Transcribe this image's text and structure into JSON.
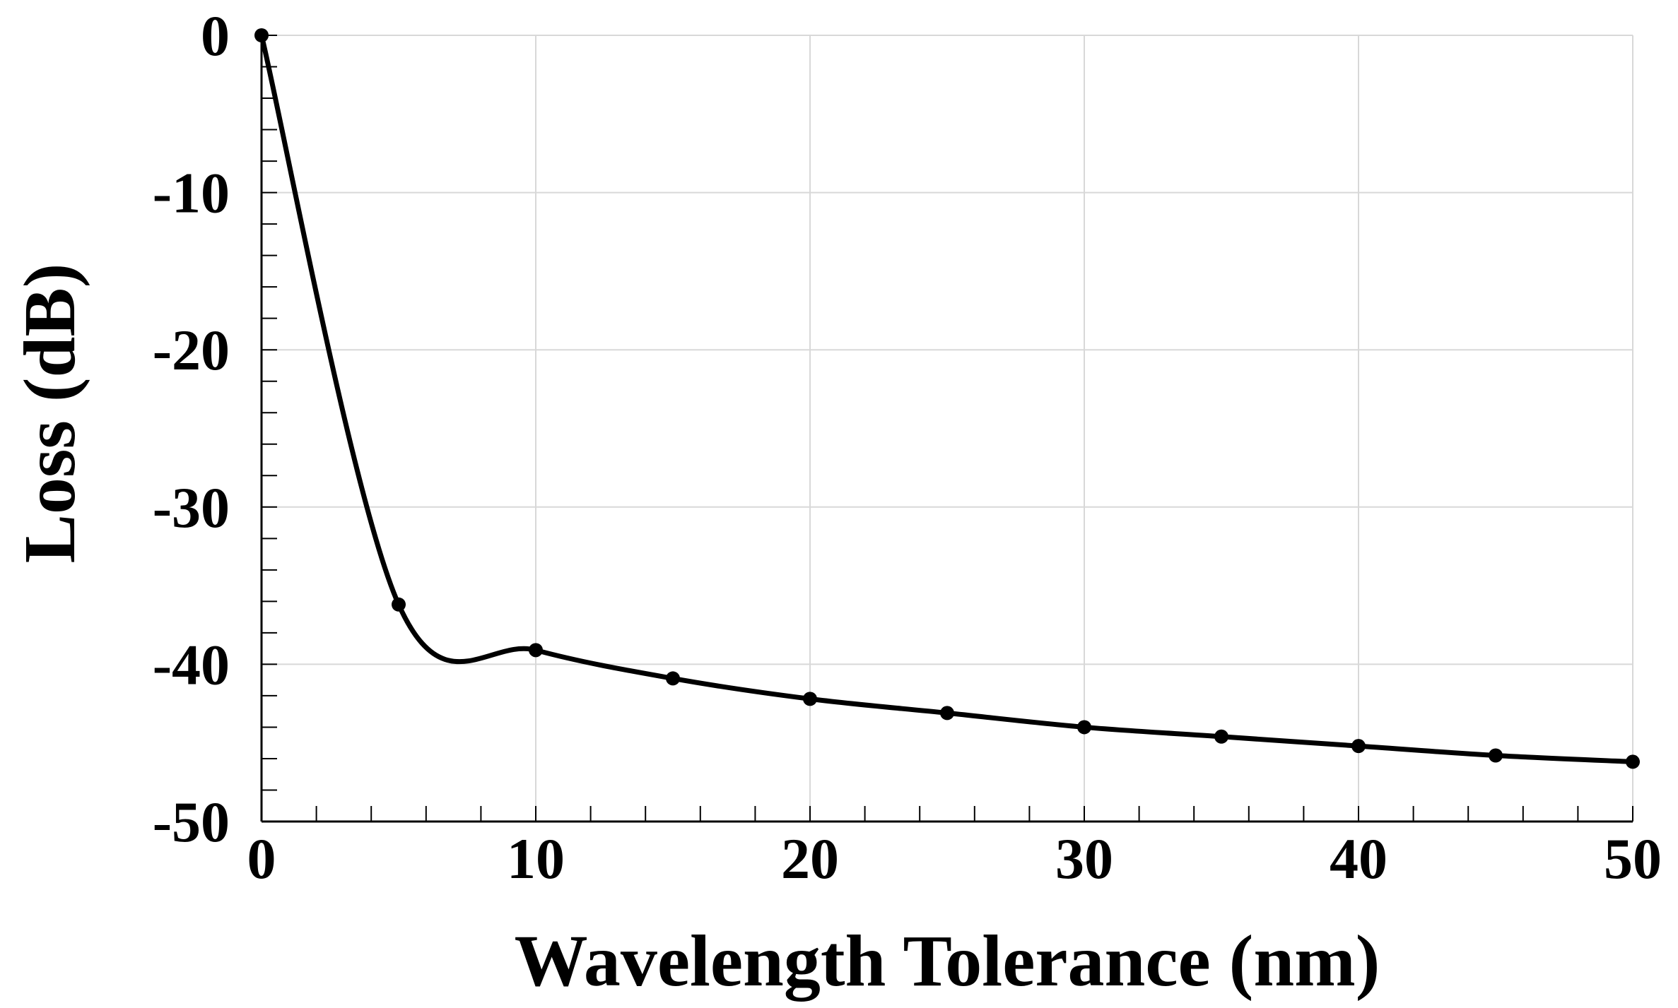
{
  "chart_data": {
    "type": "line",
    "title": "",
    "xlabel": "Wavelength Tolerance (nm)",
    "ylabel": "Loss (dB)",
    "xlim": [
      0,
      50
    ],
    "ylim": [
      -50,
      0
    ],
    "grid": true,
    "x_ticks": [
      0,
      10,
      20,
      30,
      40,
      50
    ],
    "y_ticks": [
      0,
      -10,
      -20,
      -30,
      -40,
      -50
    ],
    "x_tick_labels": [
      "0",
      "10",
      "20",
      "30",
      "40",
      "50"
    ],
    "y_tick_labels": [
      "0",
      "-10",
      "-20",
      "-30",
      "-40",
      "-50"
    ],
    "series": [
      {
        "name": "Loss",
        "color": "#000000",
        "x": [
          0,
          5,
          10,
          15,
          20,
          25,
          30,
          35,
          40,
          45,
          50
        ],
        "values": [
          0,
          -36.2,
          -39.1,
          -40.9,
          -42.2,
          -43.1,
          -44.0,
          -44.6,
          -45.2,
          -45.8,
          -46.2
        ]
      }
    ]
  }
}
